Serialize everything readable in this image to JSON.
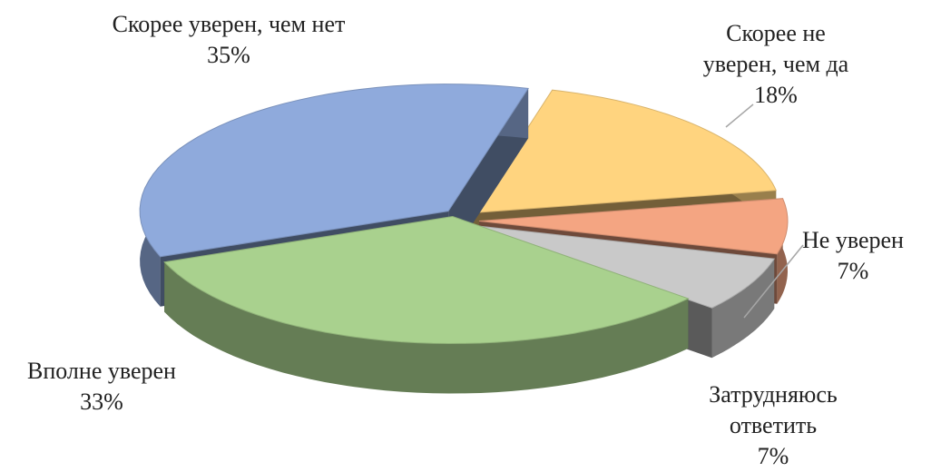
{
  "chart_data": {
    "type": "pie3d",
    "categories": [
      "Скорее не уверен, чем да",
      "Не уверен",
      "Затрудняюсь ответить",
      "Вполне уверен",
      "Скорее уверен, чем нет"
    ],
    "values": [
      18,
      7,
      7,
      33,
      35
    ],
    "value_labels": [
      "18%",
      "7%",
      "7%",
      "33%",
      "35%"
    ],
    "colors": [
      "#ffd47f",
      "#f4a582",
      "#c9c9c9",
      "#a9d18e",
      "#8faadc"
    ]
  }
}
